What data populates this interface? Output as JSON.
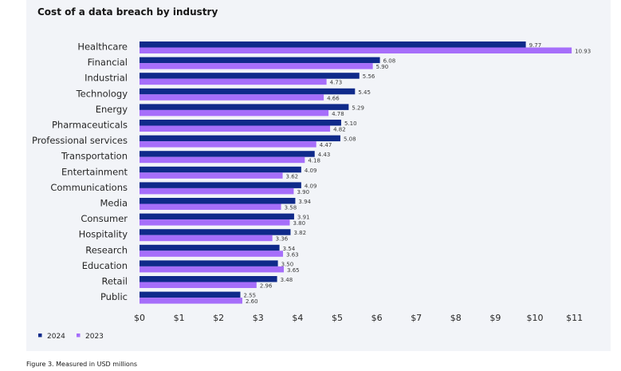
{
  "caption": "Figure 3. Measured in USD millions",
  "colors": {
    "2024": "#0f2a8a",
    "2023": "#a66efa"
  },
  "chart_data": {
    "type": "bar",
    "orientation": "horizontal",
    "title": "Cost of a data breach by industry",
    "categories": [
      "Healthcare",
      "Financial",
      "Industrial",
      "Technology",
      "Energy",
      "Pharmaceuticals",
      "Professional services",
      "Transportation",
      "Entertainment",
      "Communications",
      "Media",
      "Consumer",
      "Hospitality",
      "Research",
      "Education",
      "Retail",
      "Public"
    ],
    "series": [
      {
        "name": "2024",
        "values": [
          9.77,
          6.08,
          5.56,
          5.45,
          5.29,
          5.1,
          5.08,
          4.43,
          4.09,
          4.09,
          3.94,
          3.91,
          3.82,
          3.54,
          3.5,
          3.48,
          2.55
        ],
        "labels": [
          "9.77",
          "6.08",
          "5.56",
          "5.45",
          "5.29",
          "5.10",
          "5.08",
          "4.43",
          "4.09",
          "4.09",
          "3.94",
          "3.91",
          "3.82",
          "3.54",
          "3.50",
          "3.48",
          "2.55"
        ]
      },
      {
        "name": "2023",
        "values": [
          10.93,
          5.9,
          4.73,
          4.66,
          4.78,
          4.82,
          4.47,
          4.18,
          3.62,
          3.9,
          3.58,
          3.8,
          3.36,
          3.63,
          3.65,
          2.96,
          2.6
        ],
        "labels": [
          "10.93",
          "5.90",
          "4.73",
          "4.66",
          "4.78",
          "4.82",
          "4.47",
          "4.18",
          "3.62",
          "3.90",
          "3.58",
          "3.80",
          "3.36",
          "3.63",
          "3.65",
          "2.96",
          "2.60"
        ]
      }
    ],
    "xticks": [
      "$0",
      "$1",
      "$2",
      "$3",
      "$4",
      "$5",
      "$6",
      "$7",
      "$8",
      "$9",
      "$10",
      "$11"
    ],
    "xlim": [
      0,
      11
    ],
    "grid": false,
    "legend": "bottom-left"
  }
}
